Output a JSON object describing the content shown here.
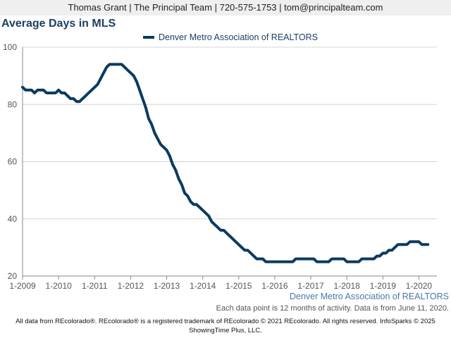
{
  "header": {
    "contact": "Thomas Grant | The Principal Team | 720-575-1753 | tom@principalteam.com"
  },
  "colors": {
    "series": "#0c3b60",
    "grid": "#d4d4d4",
    "axis": "#888888"
  },
  "chart_data": {
    "type": "line",
    "title": "Average Days in MLS",
    "xlabel": "",
    "ylabel": "",
    "ylim": [
      20,
      100
    ],
    "yticks": [
      20,
      40,
      60,
      80,
      100
    ],
    "xlim": [
      "2009-01",
      "2020-07"
    ],
    "xticks": [
      "1-2009",
      "1-2010",
      "1-2011",
      "1-2012",
      "1-2013",
      "1-2014",
      "1-2015",
      "1-2016",
      "1-2017",
      "1-2018",
      "1-2019",
      "1-2020"
    ],
    "grid": true,
    "legend_position": "top-center",
    "series": [
      {
        "name": "Denver Metro Association of REALTORS",
        "points": [
          [
            "2009-01",
            86
          ],
          [
            "2009-02",
            85
          ],
          [
            "2009-04",
            85
          ],
          [
            "2009-05",
            84
          ],
          [
            "2009-06",
            85
          ],
          [
            "2009-08",
            85
          ],
          [
            "2009-09",
            84
          ],
          [
            "2009-11",
            84
          ],
          [
            "2009-12",
            84
          ],
          [
            "2010-01",
            85
          ],
          [
            "2010-02",
            84
          ],
          [
            "2010-03",
            84
          ],
          [
            "2010-04",
            83
          ],
          [
            "2010-05",
            82
          ],
          [
            "2010-06",
            82
          ],
          [
            "2010-07",
            81
          ],
          [
            "2010-08",
            81
          ],
          [
            "2010-09",
            82
          ],
          [
            "2010-10",
            83
          ],
          [
            "2010-11",
            84
          ],
          [
            "2010-12",
            85
          ],
          [
            "2011-01",
            86
          ],
          [
            "2011-02",
            87
          ],
          [
            "2011-03",
            89
          ],
          [
            "2011-04",
            91
          ],
          [
            "2011-05",
            93
          ],
          [
            "2011-06",
            94
          ],
          [
            "2011-08",
            94
          ],
          [
            "2011-10",
            94
          ],
          [
            "2011-11",
            93
          ],
          [
            "2011-12",
            92
          ],
          [
            "2012-01",
            91
          ],
          [
            "2012-02",
            90
          ],
          [
            "2012-03",
            88
          ],
          [
            "2012-04",
            85
          ],
          [
            "2012-05",
            82
          ],
          [
            "2012-06",
            79
          ],
          [
            "2012-07",
            75
          ],
          [
            "2012-08",
            73
          ],
          [
            "2012-09",
            70
          ],
          [
            "2012-10",
            68
          ],
          [
            "2012-11",
            66
          ],
          [
            "2012-12",
            65
          ],
          [
            "2013-01",
            64
          ],
          [
            "2013-02",
            62
          ],
          [
            "2013-03",
            59
          ],
          [
            "2013-04",
            57
          ],
          [
            "2013-05",
            54
          ],
          [
            "2013-06",
            52
          ],
          [
            "2013-07",
            49
          ],
          [
            "2013-08",
            48
          ],
          [
            "2013-09",
            46
          ],
          [
            "2013-10",
            45
          ],
          [
            "2013-11",
            45
          ],
          [
            "2013-12",
            44
          ],
          [
            "2014-01",
            43
          ],
          [
            "2014-02",
            42
          ],
          [
            "2014-03",
            41
          ],
          [
            "2014-04",
            39
          ],
          [
            "2014-05",
            38
          ],
          [
            "2014-06",
            37
          ],
          [
            "2014-07",
            36
          ],
          [
            "2014-08",
            36
          ],
          [
            "2014-09",
            35
          ],
          [
            "2014-10",
            34
          ],
          [
            "2014-11",
            33
          ],
          [
            "2014-12",
            32
          ],
          [
            "2015-01",
            31
          ],
          [
            "2015-02",
            30
          ],
          [
            "2015-03",
            29
          ],
          [
            "2015-04",
            29
          ],
          [
            "2015-05",
            28
          ],
          [
            "2015-06",
            27
          ],
          [
            "2015-07",
            26
          ],
          [
            "2015-08",
            26
          ],
          [
            "2015-09",
            26
          ],
          [
            "2015-10",
            25
          ],
          [
            "2015-12",
            25
          ],
          [
            "2016-03",
            25
          ],
          [
            "2016-06",
            25
          ],
          [
            "2016-07",
            25
          ],
          [
            "2016-08",
            26
          ],
          [
            "2016-10",
            26
          ],
          [
            "2016-12",
            26
          ],
          [
            "2017-02",
            26
          ],
          [
            "2017-03",
            25
          ],
          [
            "2017-05",
            25
          ],
          [
            "2017-07",
            25
          ],
          [
            "2017-08",
            26
          ],
          [
            "2017-10",
            26
          ],
          [
            "2017-12",
            26
          ],
          [
            "2018-01",
            25
          ],
          [
            "2018-03",
            25
          ],
          [
            "2018-05",
            25
          ],
          [
            "2018-06",
            26
          ],
          [
            "2018-07",
            26
          ],
          [
            "2018-09",
            26
          ],
          [
            "2018-10",
            26
          ],
          [
            "2018-11",
            27
          ],
          [
            "2018-12",
            27
          ],
          [
            "2019-01",
            28
          ],
          [
            "2019-02",
            28
          ],
          [
            "2019-03",
            29
          ],
          [
            "2019-04",
            29
          ],
          [
            "2019-05",
            30
          ],
          [
            "2019-06",
            31
          ],
          [
            "2019-07",
            31
          ],
          [
            "2019-08",
            31
          ],
          [
            "2019-09",
            31
          ],
          [
            "2019-10",
            32
          ],
          [
            "2019-11",
            32
          ],
          [
            "2019-12",
            32
          ],
          [
            "2020-01",
            32
          ],
          [
            "2020-02",
            31
          ],
          [
            "2020-03",
            31
          ],
          [
            "2020-04",
            31
          ]
        ]
      }
    ]
  },
  "source_label": "Denver Metro Association of REALTORS",
  "activity_note": "Each data point is 12 months of activity. Data is from June 11, 2020.",
  "footer": {
    "line1": "All data from REcolorado®. REcolorado® is a registered trademark of REcolorado © 2021 REcolorado. All rights reserved. InfoSparks © 2025",
    "line2": "ShowingTime Plus, LLC."
  }
}
